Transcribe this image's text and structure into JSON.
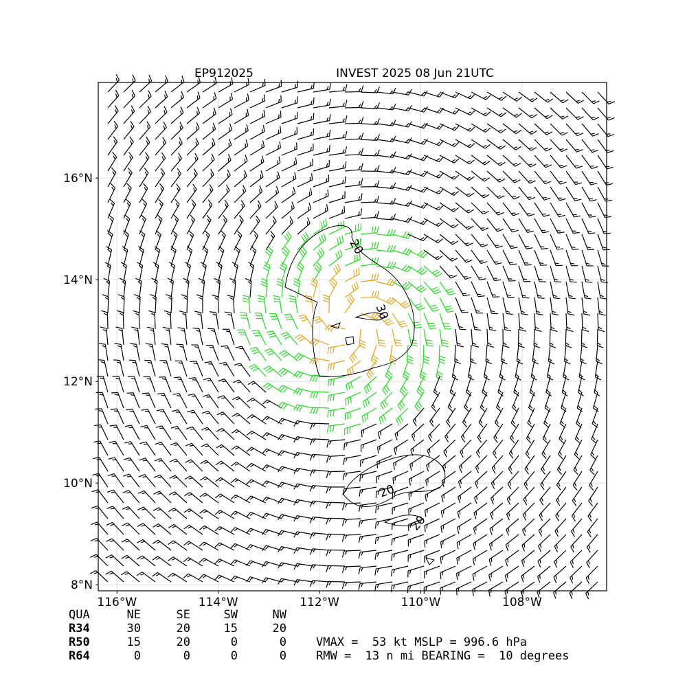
{
  "map": {
    "title_left": "EP912025",
    "title_right": "INVEST 2025 08 Jun 21UTC",
    "xlim": [
      -116.37,
      -106.33
    ],
    "ylim": [
      7.88,
      17.88
    ],
    "xticks": [
      {
        "value": -116,
        "label": "116°W"
      },
      {
        "value": -114,
        "label": "114°W"
      },
      {
        "value": -112,
        "label": "112°W"
      },
      {
        "value": -110,
        "label": "110°W"
      },
      {
        "value": -108,
        "label": "108°W"
      }
    ],
    "yticks": [
      {
        "value": 8,
        "label": "8°N"
      },
      {
        "value": 10,
        "label": "10°N"
      },
      {
        "value": 12,
        "label": "12°N"
      },
      {
        "value": 14,
        "label": "14°N"
      },
      {
        "value": 16,
        "label": "16°N"
      }
    ],
    "contour_labels": [
      "20",
      "30",
      "20",
      "20"
    ],
    "table": {
      "header": [
        "QUA",
        "NE",
        "SE",
        "SW",
        "NW"
      ],
      "rows": [
        [
          "R34",
          "30",
          "20",
          "15",
          "20"
        ],
        [
          "R50",
          "15",
          "20",
          "0",
          "0"
        ],
        [
          "R64",
          "0",
          "0",
          "0",
          "0"
        ]
      ]
    },
    "stats": [
      "VMAX =  53 kt MSLP = 996.6 hPa",
      "RMW =  13 n mi BEARING =  10 degrees"
    ]
  }
}
